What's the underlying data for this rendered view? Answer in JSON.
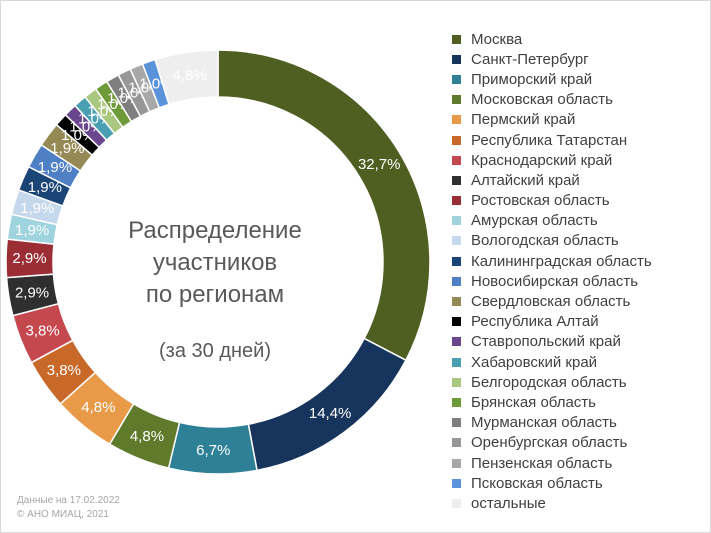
{
  "chart_data": {
    "type": "pie",
    "title": "Распределение участников по регионам",
    "title_lines": [
      "Распределение",
      "участников",
      "по регионам"
    ],
    "subtitle": "(за 30 дней)",
    "legend_position": "right",
    "categories": [
      "Москва",
      "Санкт-Петербург",
      "Приморский край",
      "Московская область",
      "Пермский край",
      "Республика Татарстан",
      "Краснодарский край",
      "Алтайский край",
      "Ростовская область",
      "Амурская область",
      "Вологодская область",
      "Калининградская область",
      "Новосибирская область",
      "Свердловская область",
      "Республика Алтай",
      "Ставропольский край",
      "Хабаровский край",
      "Белгородская область",
      "Брянская область",
      "Мурманская область",
      "Оренбургская область",
      "Пензенская область",
      "Псковская область",
      "остальные"
    ],
    "values": [
      32.7,
      14.4,
      6.7,
      4.8,
      4.8,
      3.8,
      3.8,
      2.9,
      2.9,
      1.9,
      1.9,
      1.9,
      1.9,
      1.9,
      1.0,
      1.0,
      1.0,
      1.0,
      1.0,
      1.0,
      1.0,
      1.0,
      1.0,
      4.8
    ],
    "labels": [
      "32,7%",
      "14,4%",
      "6,7%",
      "4,8%",
      "4,8%",
      "3,8%",
      "3,8%",
      "2,9%",
      "2,9%",
      "1,9%",
      "1,9%",
      "1,9%",
      "1,9%",
      "1,9%",
      "1,0%",
      "1,0%",
      "1,0%",
      "1,0%",
      "1,0%",
      "1,0%",
      "1,0%",
      "1,0%",
      "1,0%",
      "4,8%"
    ],
    "colors": [
      "#4e5f21",
      "#17355c",
      "#2e8097",
      "#5e7a2a",
      "#e89a48",
      "#c8692a",
      "#c6484f",
      "#2f2f2f",
      "#9b2e35",
      "#9fd3de",
      "#c6d8ec",
      "#1c4577",
      "#4f7fc4",
      "#958a55",
      "#000000",
      "#6a468e",
      "#4aa0b2",
      "#a9c77e",
      "#6e9a3a",
      "#7f7f7f",
      "#979797",
      "#a8a8a8",
      "#5b93db",
      "#eeeeee"
    ]
  },
  "footer": {
    "line1": "Данные на 17.02.2022",
    "line2": "© АНО МИАЦ, 2021"
  }
}
